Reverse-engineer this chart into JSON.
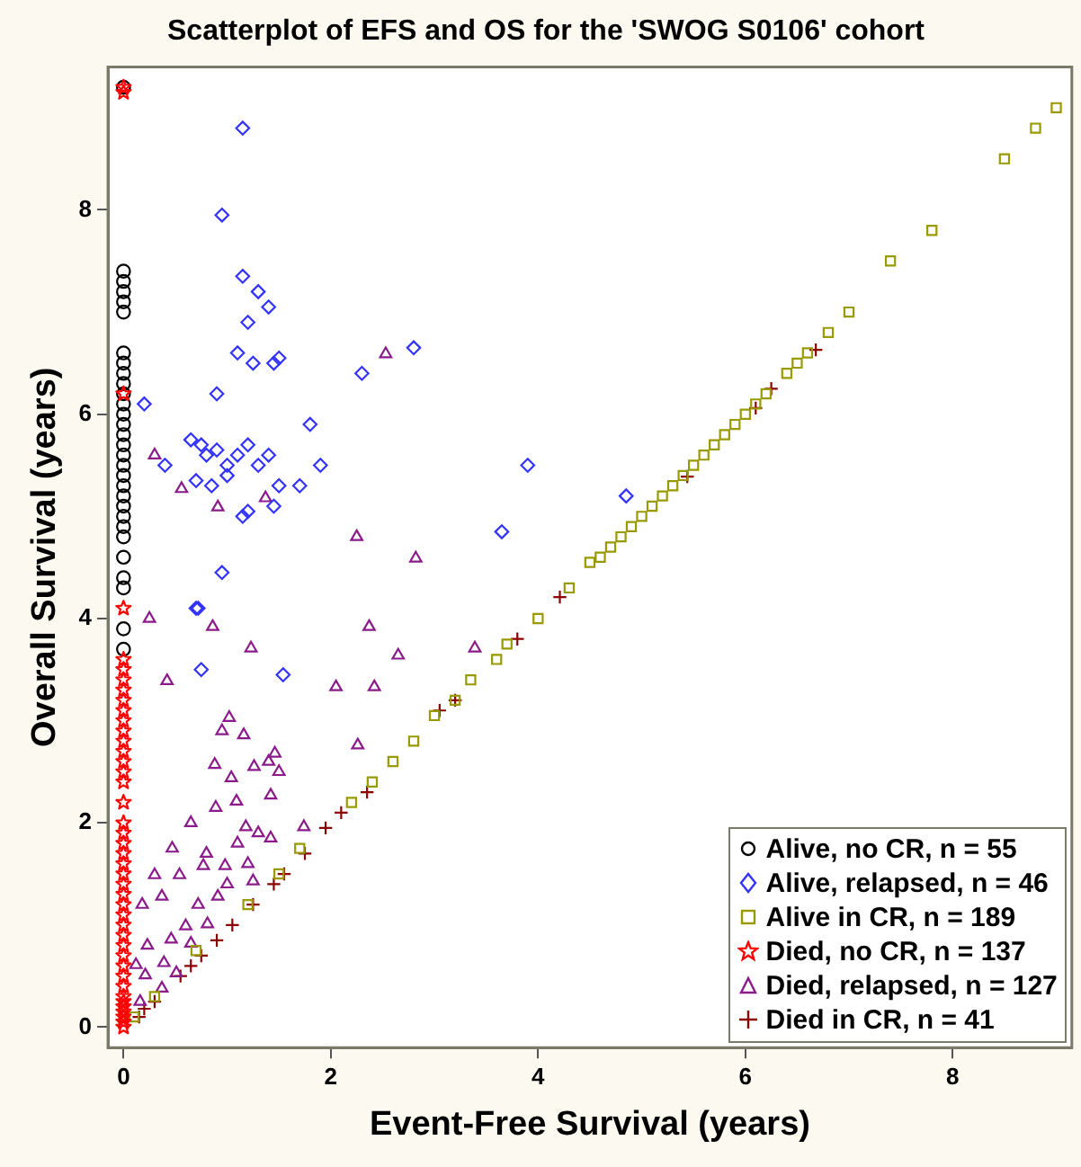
{
  "chart_data": {
    "type": "scatter",
    "title": "Scatterplot of EFS and OS for the 'SWOG S0106' cohort",
    "xlabel": "Event-Free Survival (years)",
    "ylabel": "Overall Survival (years)",
    "xlim": [
      -0.15,
      9.15
    ],
    "ylim": [
      -0.2,
      9.4
    ],
    "xticks": [
      0,
      2,
      4,
      6,
      8
    ],
    "yticks": [
      0,
      2,
      4,
      6,
      8
    ],
    "grid": false,
    "legend": "bottom right",
    "series": [
      {
        "name": "Alive, no CR, n = 55",
        "color": "#000000",
        "marker": "circle",
        "x": [
          0,
          0,
          0,
          0,
          0,
          0,
          0,
          0,
          0,
          0,
          0,
          0,
          0,
          0,
          0,
          0,
          0,
          0,
          0,
          0,
          0,
          0,
          0,
          0,
          0,
          0,
          0,
          0,
          0,
          0
        ],
        "values": [
          9.2,
          7.4,
          7.3,
          7.2,
          7.1,
          7.0,
          6.6,
          6.5,
          6.4,
          6.3,
          6.2,
          6.1,
          6.0,
          5.9,
          5.8,
          5.7,
          5.6,
          5.5,
          5.4,
          5.3,
          5.2,
          5.1,
          5.0,
          4.9,
          4.8,
          4.6,
          4.4,
          4.3,
          3.9,
          3.7
        ]
      },
      {
        "name": "Alive, relapsed, n = 46",
        "color": "#3333ff",
        "marker": "diamond",
        "x": [
          1.15,
          0.95,
          1.15,
          1.3,
          1.4,
          1.2,
          1.1,
          1.25,
          1.45,
          1.5,
          2.3,
          2.8,
          0.2,
          0.9,
          1.8,
          0.65,
          0.75,
          0.8,
          0.9,
          1.0,
          1.1,
          1.2,
          1.3,
          1.4,
          0.4,
          0.7,
          0.85,
          1.0,
          1.5,
          1.7,
          1.9,
          1.2,
          1.45,
          1.15,
          3.9,
          3.65,
          4.85,
          0.95,
          0.7,
          0.72,
          0.75,
          1.54
        ],
        "values": [
          8.8,
          7.95,
          7.35,
          7.2,
          7.05,
          6.9,
          6.6,
          6.5,
          6.5,
          6.55,
          6.4,
          6.65,
          6.1,
          6.2,
          5.9,
          5.75,
          5.7,
          5.6,
          5.65,
          5.5,
          5.6,
          5.7,
          5.5,
          5.6,
          5.5,
          5.35,
          5.3,
          5.4,
          5.3,
          5.3,
          5.5,
          5.05,
          5.1,
          5.0,
          5.5,
          4.85,
          5.2,
          4.45,
          4.1,
          4.1,
          3.5,
          3.45
        ]
      },
      {
        "name": "Alive in CR, n = 189",
        "color": "#999900",
        "marker": "square",
        "x": [
          0.1,
          0.3,
          0.7,
          1.2,
          1.5,
          1.7,
          2.2,
          2.4,
          2.6,
          2.8,
          3.0,
          3.2,
          3.35,
          3.6,
          3.7,
          4.0,
          4.3,
          4.5,
          4.6,
          4.7,
          4.8,
          4.9,
          5.0,
          5.1,
          5.2,
          5.3,
          5.4,
          5.5,
          5.6,
          5.7,
          5.8,
          5.9,
          6.0,
          6.1,
          6.2,
          6.4,
          6.5,
          6.6,
          6.8,
          7.0,
          7.4,
          7.8,
          8.5,
          8.8,
          9.0
        ],
        "values": [
          0.1,
          0.3,
          0.75,
          1.2,
          1.5,
          1.75,
          2.2,
          2.4,
          2.6,
          2.8,
          3.05,
          3.2,
          3.4,
          3.6,
          3.75,
          4.0,
          4.3,
          4.55,
          4.6,
          4.7,
          4.8,
          4.9,
          5.0,
          5.1,
          5.2,
          5.3,
          5.4,
          5.5,
          5.6,
          5.7,
          5.8,
          5.9,
          6.0,
          6.1,
          6.2,
          6.4,
          6.5,
          6.6,
          6.8,
          7.0,
          7.5,
          7.8,
          8.5,
          8.8,
          9.0
        ]
      },
      {
        "name": "Died, no CR, n = 137",
        "color": "#ff0000",
        "marker": "star",
        "x": [
          0,
          0,
          0,
          0,
          0,
          0,
          0,
          0,
          0,
          0,
          0,
          0,
          0,
          0,
          0,
          0,
          0,
          0,
          0,
          0,
          0,
          0,
          0,
          0,
          0,
          0,
          0,
          0,
          0,
          0,
          0,
          0,
          0,
          0,
          0,
          0,
          0,
          0,
          0,
          0,
          0,
          0
        ],
        "values": [
          9.2,
          9.15,
          6.2,
          4.1,
          3.6,
          3.5,
          3.4,
          3.3,
          3.2,
          3.1,
          3.0,
          2.9,
          2.8,
          2.7,
          2.6,
          2.5,
          2.4,
          2.2,
          2.0,
          1.9,
          1.8,
          1.7,
          1.6,
          1.5,
          1.4,
          1.3,
          1.2,
          1.1,
          1.0,
          0.9,
          0.8,
          0.7,
          0.6,
          0.5,
          0.4,
          0.3,
          0.25,
          0.2,
          0.15,
          0.1,
          0.05,
          0
        ]
      },
      {
        "name": "Died, relapsed, n = 127",
        "color": "#8b1a8b",
        "marker": "triangle",
        "x": [
          0.25,
          0.86,
          2.37,
          1.23,
          2.65,
          0.42,
          2.05,
          2.42,
          3.39,
          1.02,
          1.16,
          2.26,
          1.46,
          0.88,
          1.26,
          1.04,
          1.42,
          0.89,
          1.09,
          0.65,
          1.18,
          1.42,
          1.74,
          0.47,
          0.3,
          0.54,
          0.77,
          0.98,
          1.25,
          0.18,
          0.37,
          0.72,
          0.91,
          0.6,
          0.81,
          0.23,
          0.46,
          0.65,
          0.12,
          0.21,
          0.39,
          0.51,
          0.16,
          0.37,
          0.3,
          0.56,
          0.91,
          1.37,
          2.53,
          2.25,
          2.82,
          1.1,
          1.2,
          1.3,
          1.0,
          0.8,
          1.4,
          1.5,
          0.95
        ],
        "values": [
          4.0,
          3.92,
          3.92,
          3.71,
          3.64,
          3.39,
          3.33,
          3.33,
          3.71,
          3.03,
          2.86,
          2.76,
          2.68,
          2.57,
          2.55,
          2.44,
          2.27,
          2.15,
          2.21,
          2.0,
          1.96,
          1.85,
          1.96,
          1.75,
          1.49,
          1.49,
          1.58,
          1.58,
          1.43,
          1.2,
          1.28,
          1.2,
          1.28,
          0.99,
          1.01,
          0.8,
          0.86,
          0.82,
          0.61,
          0.51,
          0.63,
          0.53,
          0.25,
          0.38,
          5.6,
          5.27,
          5.09,
          5.18,
          6.59,
          4.8,
          4.59,
          1.8,
          1.6,
          1.9,
          1.4,
          1.7,
          2.6,
          2.5,
          2.9
        ]
      },
      {
        "name": "Died in CR, n = 41",
        "color": "#8b0000",
        "marker": "cross",
        "x": [
          0.15,
          0.3,
          0.55,
          0.65,
          0.75,
          0.9,
          1.05,
          1.25,
          1.45,
          1.55,
          1.75,
          1.95,
          2.1,
          2.35,
          3.05,
          3.2,
          3.8,
          4.21,
          5.44,
          6.1,
          6.25,
          6.68,
          0.2
        ],
        "values": [
          0.1,
          0.25,
          0.5,
          0.6,
          0.7,
          0.85,
          1.0,
          1.2,
          1.4,
          1.5,
          1.7,
          1.95,
          2.1,
          2.3,
          3.1,
          3.2,
          3.8,
          4.21,
          5.39,
          6.06,
          6.25,
          6.63,
          0.18
        ]
      }
    ]
  }
}
